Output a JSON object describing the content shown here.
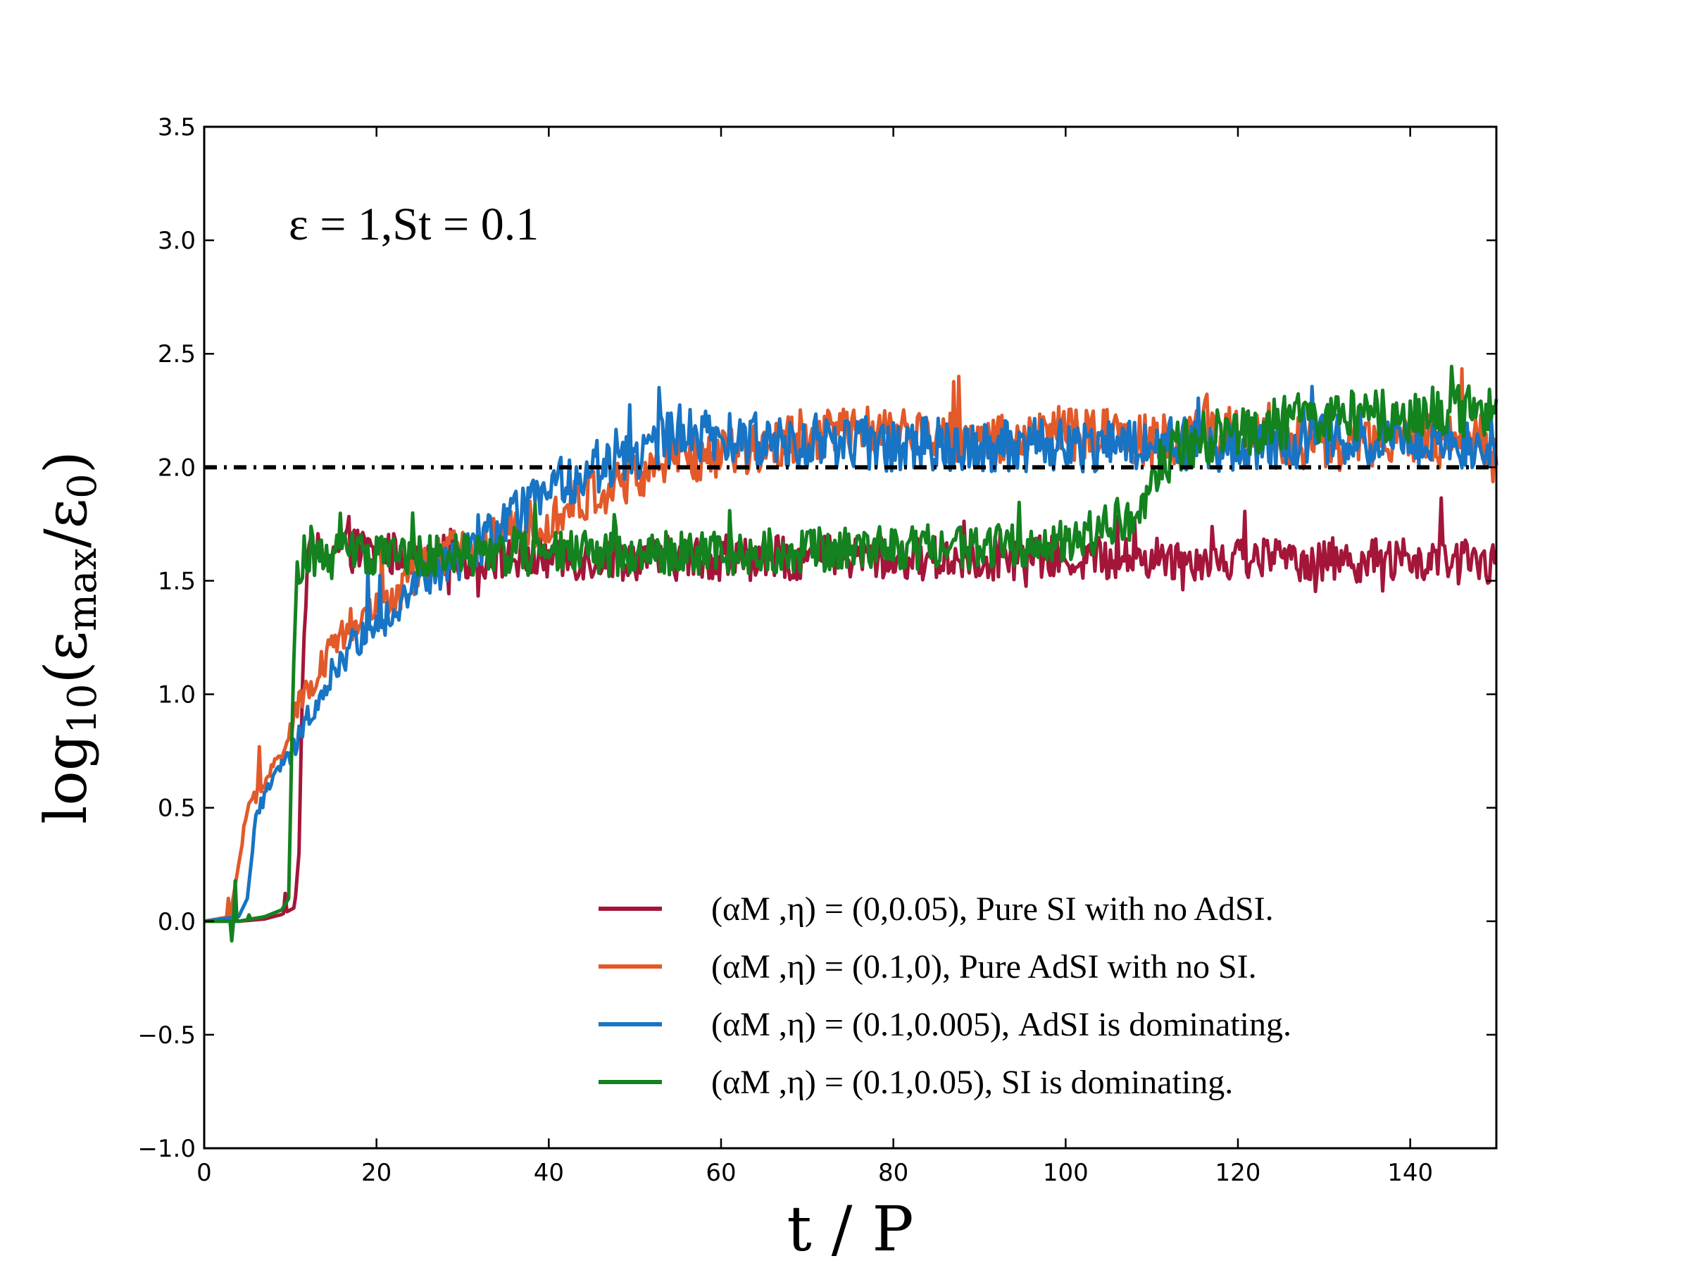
{
  "chart_data": {
    "type": "line",
    "title": "",
    "annotation": "ε = 1,St = 0.1",
    "xlabel": "t / P",
    "ylabel": "log10(εmax/ε0)",
    "ylabel_parts": {
      "base": "log",
      "sub": "10",
      "open": "(ε",
      "sub2": "max",
      "slash": "/ε",
      "sub3": "0",
      "close": ")"
    },
    "xlim": [
      0,
      150
    ],
    "ylim": [
      -1.0,
      3.5
    ],
    "xticks": [
      0,
      20,
      40,
      60,
      80,
      100,
      120,
      140
    ],
    "xtick_labels": [
      "0",
      "20",
      "40",
      "60",
      "80",
      "100",
      "120",
      "140"
    ],
    "yticks": [
      -1.0,
      -0.5,
      0.0,
      0.5,
      1.0,
      1.5,
      2.0,
      2.5,
      3.0,
      3.5
    ],
    "ytick_labels": [
      "−1.0",
      "−0.5",
      "0.0",
      "0.5",
      "1.0",
      "1.5",
      "2.0",
      "2.5",
      "3.0",
      "3.5"
    ],
    "grid": false,
    "legend_position": "lower-right",
    "reference_line": {
      "y": 2.0,
      "style": "dash-dot",
      "color": "#000000"
    },
    "series": [
      {
        "name": "(αM ,η) = (0,0.05), Pure SI with no AdSI.",
        "color": "#A3163A",
        "points": [
          [
            0,
            0.0
          ],
          [
            4,
            0.0
          ],
          [
            7,
            0.01
          ],
          [
            9,
            0.03
          ],
          [
            10.5,
            0.06
          ],
          [
            11,
            0.3
          ],
          [
            11.5,
            1.2
          ],
          [
            12,
            1.6
          ],
          [
            15,
            1.65
          ],
          [
            20,
            1.62
          ],
          [
            30,
            1.6
          ],
          [
            40,
            1.6
          ],
          [
            60,
            1.6
          ],
          [
            80,
            1.6
          ],
          [
            100,
            1.6
          ],
          [
            120,
            1.6
          ],
          [
            150,
            1.58
          ]
        ]
      },
      {
        "name": "(αM ,η) = (0.1,0), Pure AdSI with no SI.",
        "color": "#E2592A",
        "points": [
          [
            0,
            0.0
          ],
          [
            3,
            0.02
          ],
          [
            4,
            0.25
          ],
          [
            5,
            0.5
          ],
          [
            7,
            0.6
          ],
          [
            9,
            0.75
          ],
          [
            11,
            0.95
          ],
          [
            14,
            1.15
          ],
          [
            17,
            1.3
          ],
          [
            20,
            1.35
          ],
          [
            25,
            1.55
          ],
          [
            30,
            1.65
          ],
          [
            35,
            1.7
          ],
          [
            40,
            1.78
          ],
          [
            45,
            1.88
          ],
          [
            50,
            1.95
          ],
          [
            55,
            2.05
          ],
          [
            60,
            2.05
          ],
          [
            70,
            2.15
          ],
          [
            80,
            2.15
          ],
          [
            90,
            2.12
          ],
          [
            100,
            2.15
          ],
          [
            110,
            2.12
          ],
          [
            120,
            2.15
          ],
          [
            130,
            2.1
          ],
          [
            140,
            2.12
          ],
          [
            150,
            2.1
          ]
        ]
      },
      {
        "name": "(αM ,η) = (0.1,0.005), AdSI is dominating.",
        "color": "#1874C4",
        "points": [
          [
            0,
            0.0
          ],
          [
            4,
            0.02
          ],
          [
            5,
            0.1
          ],
          [
            6,
            0.45
          ],
          [
            8,
            0.65
          ],
          [
            10,
            0.72
          ],
          [
            12,
            0.9
          ],
          [
            15,
            1.1
          ],
          [
            18,
            1.25
          ],
          [
            20,
            1.3
          ],
          [
            25,
            1.5
          ],
          [
            30,
            1.6
          ],
          [
            35,
            1.75
          ],
          [
            40,
            1.9
          ],
          [
            45,
            2.0
          ],
          [
            50,
            2.05
          ],
          [
            55,
            2.15
          ],
          [
            60,
            2.12
          ],
          [
            70,
            2.12
          ],
          [
            80,
            2.1
          ],
          [
            90,
            2.1
          ],
          [
            100,
            2.1
          ],
          [
            110,
            2.1
          ],
          [
            120,
            2.1
          ],
          [
            130,
            2.12
          ],
          [
            140,
            2.12
          ],
          [
            150,
            2.1
          ]
        ]
      },
      {
        "name": "(αM ,η) = (0.1,0.05), SI is dominating.",
        "color": "#13821F",
        "points": [
          [
            0,
            0.0
          ],
          [
            4,
            0.0
          ],
          [
            7,
            0.02
          ],
          [
            9,
            0.05
          ],
          [
            9.8,
            0.1
          ],
          [
            10.2,
            0.8
          ],
          [
            10.7,
            1.55
          ],
          [
            11.5,
            1.6
          ],
          [
            20,
            1.62
          ],
          [
            40,
            1.62
          ],
          [
            60,
            1.62
          ],
          [
            80,
            1.65
          ],
          [
            95,
            1.65
          ],
          [
            100,
            1.68
          ],
          [
            104,
            1.72
          ],
          [
            108,
            1.8
          ],
          [
            110,
            1.95
          ],
          [
            113,
            2.1
          ],
          [
            118,
            2.15
          ],
          [
            125,
            2.2
          ],
          [
            135,
            2.22
          ],
          [
            150,
            2.25
          ]
        ]
      }
    ]
  }
}
